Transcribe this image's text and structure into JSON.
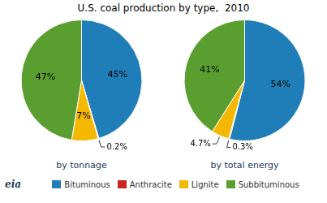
{
  "chart_data": {
    "type": "pie",
    "title": "U.S. coal production by type,  2010",
    "categories": [
      "Bituminous",
      "Anthracite",
      "Lignite",
      "Subbituminous"
    ],
    "colors": [
      "#1f7eb8",
      "#cc2222",
      "#f5b800",
      "#5a9e2f"
    ],
    "series": [
      {
        "name": "by tonnage",
        "values": [
          45,
          0.2,
          7,
          47
        ],
        "value_labels": [
          "45%",
          "0.2%",
          "7%",
          "47%"
        ]
      },
      {
        "name": "by total energy",
        "values": [
          54,
          0.3,
          4.7,
          41
        ],
        "value_labels": [
          "54%",
          "0.3%",
          "4.7%",
          "41%"
        ]
      }
    ],
    "data_labels": true,
    "legend": "bottom",
    "annotations": [
      "eia"
    ]
  }
}
